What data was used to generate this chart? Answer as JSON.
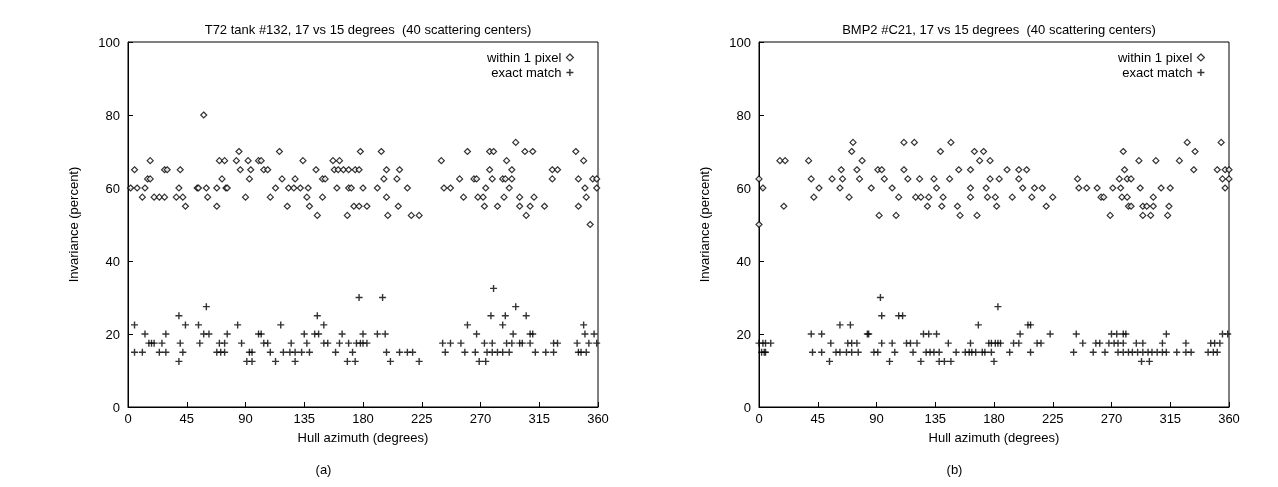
{
  "chart_data": [
    {
      "type": "scatter",
      "title": "T72 tank #132, 17 vs 15 degrees  (40 scattering centers)",
      "xlabel": "Hull azimuth (degrees)",
      "ylabel": "Invariance (percent)",
      "annotations": [
        "(a)"
      ],
      "xlim": [
        0,
        360
      ],
      "xticks": [
        0,
        45,
        90,
        135,
        180,
        225,
        270,
        315,
        360
      ],
      "ylim": [
        0,
        100
      ],
      "yticks": [
        0,
        20,
        40,
        60,
        80,
        100
      ],
      "grid": false,
      "legend": "top right",
      "series": [
        {
          "name": "within 1 pixel",
          "color": "#000000",
          "marker": "diamond",
          "x": [
            297,
            85,
            116,
            178,
            194,
            260,
            277,
            280,
            304,
            310,
            343,
            17,
            70,
            74,
            83,
            92,
            100,
            102,
            134,
            157,
            162,
            240,
            290,
            349,
            5,
            28,
            30,
            40,
            86,
            94,
            104,
            107,
            144,
            158,
            161,
            165,
            169,
            174,
            177,
            198,
            208,
            277,
            294,
            325,
            329,
            15,
            17,
            72,
            93,
            118,
            128,
            149,
            151,
            196,
            206,
            254,
            265,
            267,
            279,
            287,
            289,
            294,
            325,
            345,
            356,
            359,
            2,
            7,
            13,
            39,
            53,
            54,
            60,
            68,
            75,
            76,
            113,
            123,
            127,
            132,
            138,
            160,
            169,
            171,
            180,
            191,
            214,
            242,
            247,
            274,
            292,
            350,
            359,
            11,
            20,
            24,
            28,
            37,
            42,
            61,
            90,
            109,
            137,
            149,
            198,
            257,
            268,
            272,
            288,
            300,
            311,
            351,
            44,
            68,
            122,
            139,
            173,
            177,
            183,
            207,
            273,
            283,
            300,
            308,
            319,
            345,
            145,
            168,
            199,
            217,
            223,
            305,
            354,
            58
          ],
          "values": [
            72.5,
            70,
            70,
            70,
            70,
            70,
            70,
            70,
            70,
            70,
            70,
            67.5,
            67.5,
            67.5,
            67.5,
            67.5,
            67.5,
            67.5,
            67.5,
            67.5,
            67.5,
            67.5,
            67.5,
            67.5,
            65,
            65,
            65,
            65,
            65,
            65,
            65,
            65,
            65,
            65,
            65,
            65,
            65,
            65,
            65,
            65,
            65,
            65,
            65,
            65,
            65,
            62.5,
            62.5,
            62.5,
            62.5,
            62.5,
            62.5,
            62.5,
            62.5,
            62.5,
            62.5,
            62.5,
            62.5,
            62.5,
            62.5,
            62.5,
            62.5,
            62.5,
            62.5,
            62.5,
            62.5,
            62.5,
            60,
            60,
            60,
            60,
            60,
            60,
            60,
            60,
            60,
            60,
            60,
            60,
            60,
            60,
            60,
            60,
            60,
            60,
            60,
            60,
            60,
            60,
            60,
            60,
            60,
            60,
            60,
            57.5,
            57.5,
            57.5,
            57.5,
            57.5,
            57.5,
            57.5,
            57.5,
            57.5,
            57.5,
            57.5,
            57.5,
            57.5,
            57.5,
            57.5,
            57.5,
            57.5,
            57.5,
            57.5,
            55,
            55,
            55,
            55,
            55,
            55,
            55,
            55,
            55,
            55,
            55,
            55,
            55,
            55,
            52.5,
            52.5,
            52.5,
            52.5,
            52.5,
            52.5,
            50,
            80
          ]
        },
        {
          "name": "exact match",
          "color": "#000000",
          "marker": "cross",
          "x": [
            280,
            177,
            195,
            60,
            297,
            39,
            145,
            278,
            289,
            305,
            5,
            44,
            54,
            84,
            117,
            150,
            260,
            287,
            349,
            13,
            29,
            58,
            62,
            76,
            100,
            102,
            135,
            143,
            146,
            164,
            180,
            191,
            197,
            267,
            295,
            308,
            310,
            350,
            357,
            16,
            18,
            20,
            26,
            40,
            55,
            70,
            74,
            87,
            104,
            107,
            125,
            137,
            150,
            153,
            162,
            169,
            175,
            178,
            180,
            183,
            241,
            247,
            255,
            273,
            279,
            290,
            294,
            300,
            302,
            308,
            326,
            329,
            344,
            353,
            359,
            5,
            11,
            24,
            29,
            42,
            68,
            71,
            74,
            93,
            95,
            109,
            119,
            124,
            128,
            133,
            139,
            159,
            172,
            198,
            208,
            214,
            218,
            243,
            258,
            266,
            275,
            279,
            283,
            287,
            292,
            312,
            320,
            326,
            345,
            347,
            351,
            39,
            91,
            95,
            113,
            128,
            168,
            174,
            201,
            223,
            269,
            274
          ],
          "values": [
            32.5,
            30,
            30,
            27.5,
            27.5,
            25,
            25,
            25,
            25,
            25,
            22.5,
            22.5,
            22.5,
            22.5,
            22.5,
            22.5,
            22.5,
            22.5,
            22.5,
            20,
            20,
            20,
            20,
            20,
            20,
            20,
            20,
            20,
            20,
            20,
            20,
            20,
            20,
            20,
            20,
            20,
            20,
            20,
            20,
            17.5,
            17.5,
            17.5,
            17.5,
            17.5,
            17.5,
            17.5,
            17.5,
            17.5,
            17.5,
            17.5,
            17.5,
            17.5,
            17.5,
            17.5,
            17.5,
            17.5,
            17.5,
            17.5,
            17.5,
            17.5,
            17.5,
            17.5,
            17.5,
            17.5,
            17.5,
            17.5,
            17.5,
            17.5,
            17.5,
            17.5,
            17.5,
            17.5,
            17.5,
            17.5,
            17.5,
            15,
            15,
            15,
            15,
            15,
            15,
            15,
            15,
            15,
            15,
            15,
            15,
            15,
            15,
            15,
            15,
            15,
            15,
            15,
            15,
            15,
            15,
            15,
            15,
            15,
            15,
            15,
            15,
            15,
            15,
            15,
            15,
            15,
            15,
            15,
            15,
            12.5,
            12.5,
            12.5,
            12.5,
            12.5,
            12.5,
            12.5,
            12.5,
            12.5,
            12.5,
            12.5
          ]
        }
      ]
    },
    {
      "type": "scatter",
      "title": "BMP2 #C21, 17 vs 15 degrees  (40 scattering centers)",
      "xlabel": "Hull azimuth (degrees)",
      "ylabel": "Invariance (percent)",
      "annotations": [
        "(b)"
      ],
      "xlim": [
        0,
        360
      ],
      "xticks": [
        0,
        45,
        90,
        135,
        180,
        225,
        270,
        315,
        360
      ],
      "ylim": [
        0,
        100
      ],
      "yticks": [
        0,
        20,
        40,
        60,
        80,
        100
      ],
      "grid": false,
      "legend": "top right",
      "series": [
        {
          "name": "within 1 pixel",
          "color": "#000000",
          "marker": "diamond",
          "x": [
            72,
            111,
            119,
            147,
            328,
            354,
            71,
            139,
            165,
            172,
            279,
            334,
            16,
            20,
            38,
            79,
            169,
            177,
            291,
            304,
            322,
            63,
            75,
            91,
            94,
            111,
            153,
            162,
            190,
            199,
            205,
            280,
            333,
            351,
            357,
            360,
            0,
            40,
            56,
            64,
            77,
            96,
            114,
            123,
            134,
            146,
            177,
            184,
            199,
            244,
            276,
            282,
            285,
            355,
            360,
            3,
            46,
            62,
            86,
            102,
            136,
            162,
            174,
            202,
            211,
            217,
            245,
            251,
            259,
            271,
            277,
            292,
            308,
            315,
            357,
            42,
            69,
            107,
            120,
            124,
            130,
            141,
            162,
            175,
            181,
            194,
            209,
            225,
            262,
            264,
            278,
            282,
            302,
            19,
            129,
            140,
            152,
            182,
            220,
            283,
            285,
            294,
            297,
            302,
            314,
            92,
            105,
            154,
            167,
            269,
            294,
            300,
            313,
            0
          ],
          "values": [
            72.5,
            72.5,
            72.5,
            72.5,
            72.5,
            72.5,
            70,
            70,
            70,
            70,
            70,
            70,
            67.5,
            67.5,
            67.5,
            67.5,
            67.5,
            67.5,
            67.5,
            67.5,
            67.5,
            65,
            65,
            65,
            65,
            65,
            65,
            65,
            65,
            65,
            65,
            65,
            65,
            65,
            65,
            65,
            62.5,
            62.5,
            62.5,
            62.5,
            62.5,
            62.5,
            62.5,
            62.5,
            62.5,
            62.5,
            62.5,
            62.5,
            62.5,
            62.5,
            62.5,
            62.5,
            62.5,
            62.5,
            62.5,
            60,
            60,
            60,
            60,
            60,
            60,
            60,
            60,
            60,
            60,
            60,
            60,
            60,
            60,
            60,
            60,
            60,
            60,
            60,
            60,
            57.5,
            57.5,
            57.5,
            57.5,
            57.5,
            57.5,
            57.5,
            57.5,
            57.5,
            57.5,
            57.5,
            57.5,
            57.5,
            57.5,
            57.5,
            57.5,
            57.5,
            57.5,
            55,
            55,
            55,
            55,
            55,
            55,
            55,
            55,
            55,
            55,
            55,
            55,
            52.5,
            52.5,
            52.5,
            52.5,
            52.5,
            52.5,
            52.5,
            52.5,
            50
          ]
        },
        {
          "name": "exact match",
          "color": "#000000",
          "marker": "cross",
          "x": [
            93,
            183,
            94,
            107,
            110,
            62,
            70,
            168,
            206,
            208,
            40,
            48,
            83,
            84,
            126,
            130,
            136,
            200,
            223,
            243,
            270,
            274,
            279,
            281,
            312,
            355,
            359,
            0,
            3,
            5,
            9,
            55,
            68,
            71,
            75,
            94,
            102,
            113,
            116,
            121,
            145,
            162,
            176,
            178,
            181,
            183,
            185,
            195,
            199,
            213,
            216,
            248,
            258,
            261,
            268,
            272,
            275,
            279,
            289,
            294,
            309,
            327,
            346,
            349,
            353,
            2,
            4,
            5,
            41,
            48,
            59,
            62,
            67,
            71,
            76,
            88,
            91,
            104,
            118,
            128,
            131,
            134,
            138,
            151,
            158,
            161,
            163,
            166,
            171,
            173,
            178,
            192,
            208,
            241,
            256,
            265,
            275,
            279,
            283,
            286,
            290,
            294,
            298,
            301,
            305,
            309,
            312,
            320,
            327,
            331,
            344,
            348,
            351,
            54,
            100,
            124,
            138,
            142,
            147,
            180,
            293,
            299
          ],
          "values": [
            30,
            27.5,
            25,
            25,
            25,
            22.5,
            22.5,
            22.5,
            22.5,
            22.5,
            20,
            20,
            20,
            20,
            20,
            20,
            20,
            20,
            20,
            20,
            20,
            20,
            20,
            20,
            20,
            20,
            20,
            17.5,
            17.5,
            17.5,
            17.5,
            17.5,
            17.5,
            17.5,
            17.5,
            17.5,
            17.5,
            17.5,
            17.5,
            17.5,
            17.5,
            17.5,
            17.5,
            17.5,
            17.5,
            17.5,
            17.5,
            17.5,
            17.5,
            17.5,
            17.5,
            17.5,
            17.5,
            17.5,
            17.5,
            17.5,
            17.5,
            17.5,
            17.5,
            17.5,
            17.5,
            17.5,
            17.5,
            17.5,
            17.5,
            15,
            15,
            15,
            15,
            15,
            15,
            15,
            15,
            15,
            15,
            15,
            15,
            15,
            15,
            15,
            15,
            15,
            15,
            15,
            15,
            15,
            15,
            15,
            15,
            15,
            15,
            15,
            15,
            15,
            15,
            15,
            15,
            15,
            15,
            15,
            15,
            15,
            15,
            15,
            15,
            15,
            15,
            15,
            15,
            15,
            15,
            15,
            15,
            12.5,
            12.5,
            12.5,
            12.5,
            12.5,
            12.5,
            12.5,
            12.5,
            12.5
          ]
        }
      ]
    }
  ]
}
